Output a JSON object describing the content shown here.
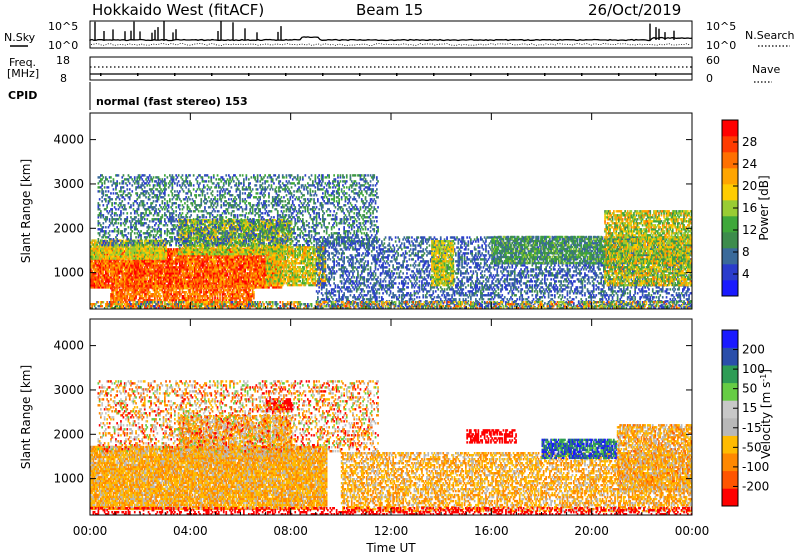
{
  "header": {
    "radar": "Hokkaido West (fitACF)",
    "beam": "Beam 15",
    "date": "26/Oct/2019"
  },
  "noise_panel": {
    "left_label": "N.Sky",
    "right_label": "N.Search",
    "left_ticks": [
      "10^5",
      "10^0"
    ],
    "right_ticks": [
      "10^5",
      "10^0"
    ]
  },
  "freq_panel": {
    "left_label_1": "Freq.",
    "left_label_2": "[MHz]",
    "right_label": "Nave",
    "left_ticks": [
      "18",
      "8"
    ],
    "right_ticks": [
      "60",
      "0"
    ],
    "cpid_label": "CPID",
    "cpid_text": "normal (fast stereo) 153"
  },
  "colors": {
    "power": [
      "#1a1aff",
      "#2a3ccc",
      "#3a6a9a",
      "#3d8c4c",
      "#3fa83a",
      "#99cc33",
      "#ffcc00",
      "#ffa500",
      "#ff7000",
      "#ff3b00",
      "#ff0000"
    ],
    "velocity": [
      "#ff0000",
      "#ff5500",
      "#ff8800",
      "#ffbb00",
      "#b8b8b8",
      "#c8c8c8",
      "#66cc44",
      "#2e9c55",
      "#2a4eaa",
      "#1a1aff"
    ]
  },
  "chart_data": [
    {
      "type": "heatmap",
      "name": "power",
      "ylabel": "Slant Range [km]",
      "colorbar_label": "Power [dB]",
      "colorbar_ticks": [
        "4",
        "8",
        "12",
        "16",
        "20",
        "24",
        "28"
      ],
      "yticks": [
        "1000",
        "2000",
        "3000",
        "4000"
      ],
      "ylim": [
        180,
        4600
      ],
      "xlim": [
        0,
        24
      ],
      "blobs": [
        {
          "t0": 0.0,
          "t1": 7.6,
          "r0": 650,
          "r1": 1550,
          "vmin": 20,
          "vmax": 32,
          "density": 0.93
        },
        {
          "t0": 0.0,
          "t1": 3.0,
          "r0": 1300,
          "r1": 1750,
          "vmin": 14,
          "vmax": 22,
          "density": 0.85
        },
        {
          "t0": 0.8,
          "t1": 6.5,
          "r0": 180,
          "r1": 700,
          "vmin": 20,
          "vmax": 30,
          "density": 0.75
        },
        {
          "t0": 3.5,
          "t1": 8.0,
          "r0": 1400,
          "r1": 2200,
          "vmin": 12,
          "vmax": 22,
          "density": 0.8
        },
        {
          "t0": 7.0,
          "t1": 9.4,
          "r0": 700,
          "r1": 1600,
          "vmin": 12,
          "vmax": 24,
          "density": 0.8
        },
        {
          "t0": 0.3,
          "t1": 11.5,
          "r0": 1600,
          "r1": 3200,
          "vmin": 3,
          "vmax": 14,
          "density": 0.35
        },
        {
          "t0": 9.0,
          "t1": 24.0,
          "r0": 200,
          "r1": 1800,
          "vmin": 3,
          "vmax": 10,
          "density": 0.4
        },
        {
          "t0": 13.6,
          "t1": 14.5,
          "r0": 700,
          "r1": 1700,
          "vmin": 12,
          "vmax": 22,
          "density": 0.8
        },
        {
          "t0": 16.0,
          "t1": 24.0,
          "r0": 1200,
          "r1": 1800,
          "vmin": 6,
          "vmax": 16,
          "density": 0.7
        },
        {
          "t0": 20.5,
          "t1": 24.0,
          "r0": 700,
          "r1": 2400,
          "vmin": 10,
          "vmax": 24,
          "density": 0.7
        },
        {
          "t0": 0.0,
          "t1": 24.0,
          "r0": 180,
          "r1": 350,
          "vmin": 4,
          "vmax": 28,
          "density": 0.5
        }
      ]
    },
    {
      "type": "heatmap",
      "name": "velocity",
      "xlabel": "Time UT",
      "ylabel": "Slant Range [km]",
      "colorbar_label": "Velocity [m s^-1]",
      "colorbar_ticks": [
        "-200",
        "-100",
        "-50",
        "-15",
        "15",
        "50",
        "100",
        "200"
      ],
      "yticks": [
        "1000",
        "2000",
        "3000",
        "4000"
      ],
      "xticks": [
        "00:00",
        "04:00",
        "08:00",
        "12:00",
        "16:00",
        "20:00",
        "00:00"
      ],
      "ylim": [
        180,
        4600
      ],
      "xlim": [
        0,
        24
      ],
      "blobs": [
        {
          "t0": 0.0,
          "t1": 9.4,
          "r0": 300,
          "r1": 1700,
          "vmin": -10,
          "vmax": 10,
          "density": 0.9
        },
        {
          "t0": 3.5,
          "t1": 8.0,
          "r0": 1400,
          "r1": 2400,
          "vmin": -12,
          "vmax": 14,
          "density": 0.7
        },
        {
          "t0": 7.0,
          "t1": 8.0,
          "r0": 2500,
          "r1": 2800,
          "vmin": -120,
          "vmax": -60,
          "density": 0.8
        },
        {
          "t0": 10.0,
          "t1": 24.0,
          "r0": 250,
          "r1": 1600,
          "vmin": -12,
          "vmax": 12,
          "density": 0.55
        },
        {
          "t0": 0.3,
          "t1": 11.5,
          "r0": 1600,
          "r1": 3200,
          "vmin": -30,
          "vmax": 30,
          "density": 0.3
        },
        {
          "t0": 18.0,
          "t1": 21.0,
          "r0": 1450,
          "r1": 1900,
          "vmin": 30,
          "vmax": 60,
          "density": 0.8
        },
        {
          "t0": 21.0,
          "t1": 24.0,
          "r0": 700,
          "r1": 2200,
          "vmin": -14,
          "vmax": 14,
          "density": 0.7
        },
        {
          "t0": 15.0,
          "t1": 17.0,
          "r0": 1800,
          "r1": 2100,
          "vmin": -120,
          "vmax": -50,
          "density": 0.55
        },
        {
          "t0": 0.0,
          "t1": 24.0,
          "r0": 180,
          "r1": 350,
          "vmin": -200,
          "vmax": -30,
          "density": 0.35
        }
      ]
    }
  ]
}
